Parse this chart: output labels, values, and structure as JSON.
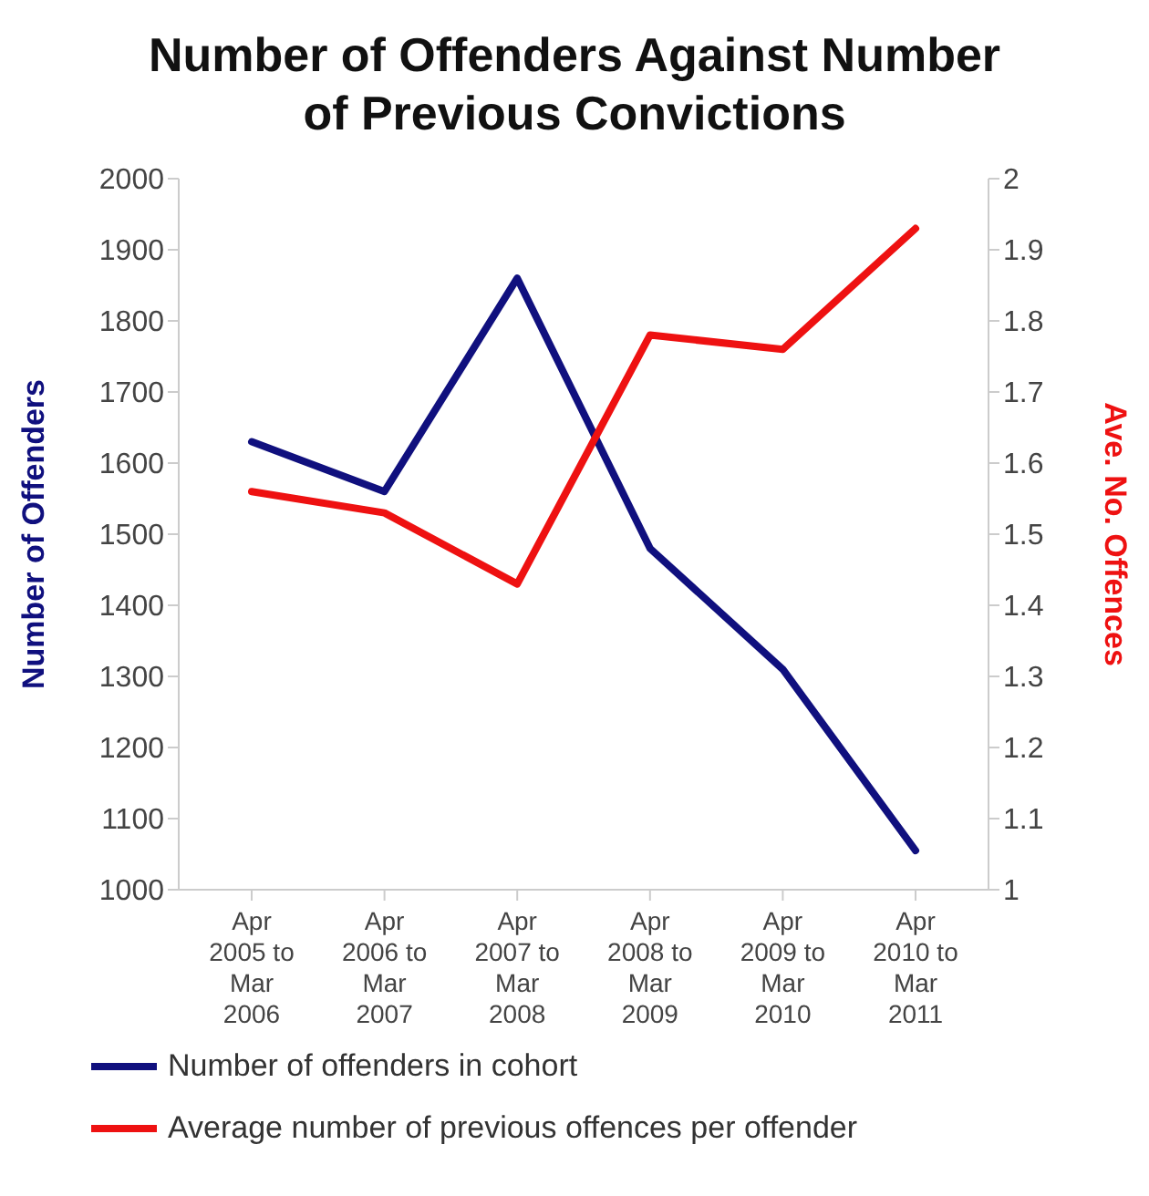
{
  "chart_data": {
    "type": "line",
    "title": "Number of Offenders Against Number of Previous Convictions",
    "categories": [
      "Apr 2005 to Mar 2006",
      "Apr 2006 to Mar 2007",
      "Apr 2007 to Mar 2008",
      "Apr 2008 to Mar 2009",
      "Apr 2009 to Mar 2010",
      "Apr 2010 to Mar 2011"
    ],
    "ylabel": "Number of Offenders",
    "y2label": "Ave. No. Offences",
    "series": [
      {
        "name": "Number of offenders in cohort",
        "color": "#10107e",
        "values": [
          1630,
          1560,
          1860,
          1480,
          1310,
          1055
        ]
      },
      {
        "name": "Average number of previous offences per offender",
        "color": "#ee1111",
        "axis": "y2",
        "values": [
          1.56,
          1.53,
          1.43,
          1.78,
          1.76,
          1.93
        ]
      }
    ],
    "ylim": [
      1000,
      2000
    ],
    "yticks": [
      1000,
      1100,
      1200,
      1300,
      1400,
      1500,
      1600,
      1700,
      1800,
      1900,
      2000
    ],
    "y2lim": [
      1,
      2
    ],
    "y2ticks": [
      1,
      1.1,
      1.2,
      1.3,
      1.4,
      1.5,
      1.6,
      1.7,
      1.8,
      1.9,
      2
    ],
    "grid": false,
    "legend": "bottom left",
    "marker": "none",
    "line_style": "solid"
  }
}
